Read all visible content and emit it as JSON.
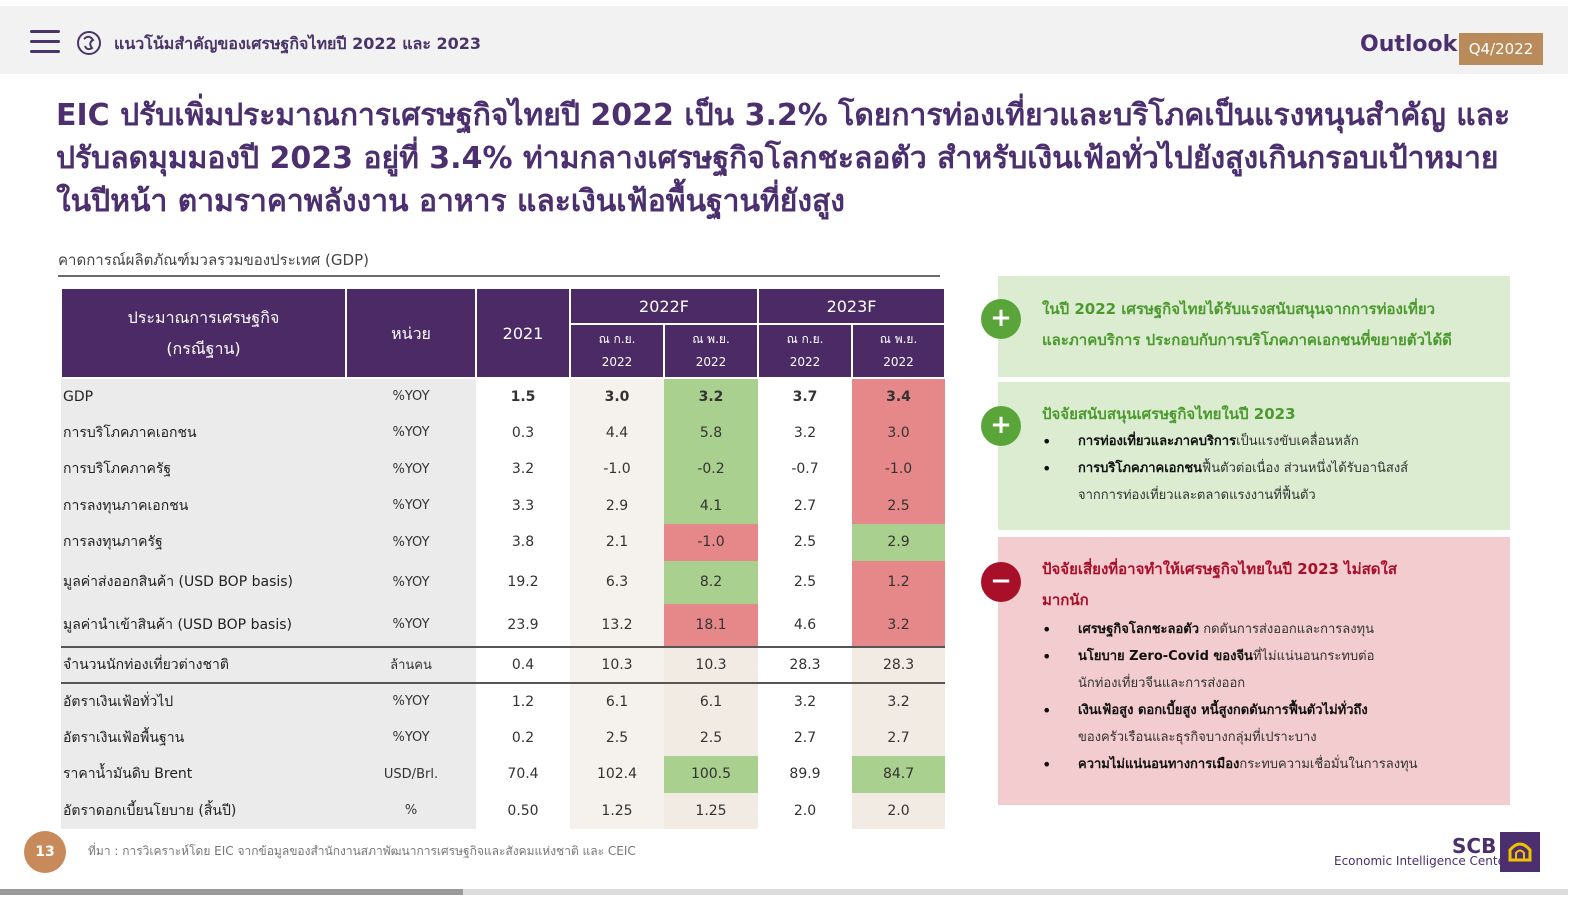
{
  "header": {
    "title": "แนวโน้มสำคัญของเศรษฐกิจไทยปี 2022 และ 2023",
    "outlook": "Outlook",
    "quarter": "Q4/2022",
    "menu_icon": "hamburger-menu-icon",
    "logo_icon": "eic-logo-icon"
  },
  "headline": {
    "line1": "EIC ปรับเพิ่มประมาณการเศรษฐกิจไทยปี 2022 เป็น 3.2% โดยการท่องเที่ยวและบริโภคเป็นแรงหนุนสำคัญ และ",
    "line2": "ปรับลดมุมมองปี 2023 อยู่ที่ 3.4% ท่ามกลางเศรษฐกิจโลกชะลอตัว สำหรับเงินเฟ้อทั่วไปยังสูงเกินกรอบเป้าหมาย",
    "line3": "ในปีหน้า ตามราคาพลังงาน อาหาร และเงินเฟ้อพื้นฐานที่ยังสูง"
  },
  "table": {
    "subtitle": "คาดการณ์ผลิตภัณฑ์มวลรวมของประเทศ (GDP)",
    "header": {
      "col_label_line1": "ประมาณการเศรษฐกิจ",
      "col_label_line2": "(กรณีฐาน)",
      "col_unit": "หน่วย",
      "col_2021": "2021",
      "group_2022": "2022F",
      "group_2023": "2023F",
      "sep_line1": "ณ ก.ย.",
      "sep_line2": "2022",
      "nov_line1": "ณ พ.ย.",
      "nov_line2": "2022"
    },
    "rows": [
      {
        "label": "GDP",
        "unit": "%YOY",
        "y2021": "1.5",
        "f22_sep": "3.0",
        "f22_nov": "3.2",
        "f23_sep": "3.7",
        "f23_nov": "3.4",
        "hl22": "green",
        "hl23": "red"
      },
      {
        "label": "การบริโภคภาคเอกชน",
        "unit": "%YOY",
        "y2021": "0.3",
        "f22_sep": "4.4",
        "f22_nov": "5.8",
        "f23_sep": "3.2",
        "f23_nov": "3.0",
        "hl22": "green",
        "hl23": "red"
      },
      {
        "label": "การบริโภคภาครัฐ",
        "unit": "%YOY",
        "y2021": "3.2",
        "f22_sep": "-1.0",
        "f22_nov": "-0.2",
        "f23_sep": "-0.7",
        "f23_nov": "-1.0",
        "hl22": "green",
        "hl23": "red"
      },
      {
        "label": "การลงทุนภาคเอกชน",
        "unit": "%YOY",
        "y2021": "3.3",
        "f22_sep": "2.9",
        "f22_nov": "4.1",
        "f23_sep": "2.7",
        "f23_nov": "2.5",
        "hl22": "green",
        "hl23": "red"
      },
      {
        "label": "การลงทุนภาครัฐ",
        "unit": "%YOY",
        "y2021": "3.8",
        "f22_sep": "2.1",
        "f22_nov": "-1.0",
        "f23_sep": "2.5",
        "f23_nov": "2.9",
        "hl22": "red",
        "hl23": "green"
      },
      {
        "label": "มูลค่าส่งออกสินค้า  (USD BOP basis)",
        "unit": "%YOY",
        "y2021": "19.2",
        "f22_sep": "6.3",
        "f22_nov": "8.2",
        "f23_sep": "2.5",
        "f23_nov": "1.2",
        "hl22": "green",
        "hl23": "red"
      },
      {
        "label": "มูลค่านำเข้าสินค้า  (USD BOP basis)",
        "unit": "%YOY",
        "y2021": "23.9",
        "f22_sep": "13.2",
        "f22_nov": "18.1",
        "f23_sep": "4.6",
        "f23_nov": "3.2",
        "hl22": "red",
        "hl23": "red"
      },
      {
        "label": "จำนวนนักท่องเที่ยวต่างชาติ",
        "unit": "ล้านคน",
        "y2021": "0.4",
        "f22_sep": "10.3",
        "f22_nov": "10.3",
        "f23_sep": "28.3",
        "f23_nov": "28.3",
        "hl22": "",
        "hl23": ""
      },
      {
        "label": "อัตราเงินเฟ้อทั่วไป",
        "unit": "%YOY",
        "y2021": "1.2",
        "f22_sep": "6.1",
        "f22_nov": "6.1",
        "f23_sep": "3.2",
        "f23_nov": "3.2",
        "hl22": "",
        "hl23": ""
      },
      {
        "label": "อัตราเงินเฟ้อพื้นฐาน",
        "unit": "%YOY",
        "y2021": "0.2",
        "f22_sep": "2.5",
        "f22_nov": "2.5",
        "f23_sep": "2.7",
        "f23_nov": "2.7",
        "hl22": "",
        "hl23": ""
      },
      {
        "label": "ราคาน้ำมันดิบ Brent",
        "unit": "USD/Brl.",
        "y2021": "70.4",
        "f22_sep": "102.4",
        "f22_nov": "100.5",
        "f23_sep": "89.9",
        "f23_nov": "84.7",
        "hl22": "green",
        "hl23": "green"
      },
      {
        "label": "อัตราดอกเบี้ยนโยบาย (สิ้นปี)",
        "unit": "%",
        "y2021": "0.50",
        "f22_sep": "1.25",
        "f22_nov": "1.25",
        "f23_sep": "2.0",
        "f23_nov": "2.0",
        "hl22": "",
        "hl23": ""
      }
    ]
  },
  "panels": {
    "p1": {
      "icon": "plus-icon",
      "line1": "ในปี 2022 เศรษฐกิจไทยได้รับแรงสนับสนุนจากการท่องเที่ยว",
      "line2": "และภาคบริการ ประกอบกับการบริโภคภาคเอกชนที่ขยายตัวได้ดี"
    },
    "p2": {
      "icon": "plus-icon",
      "title": "ปัจจัยสนับสนุนเศรษฐกิจไทยในปี 2023",
      "b1_bold": "การท่องเที่ยวและภาคบริการ",
      "b1_rest": "เป็นแรงขับเคลื่อนหลัก",
      "b2_bold": "การบริโภคภาคเอกชน",
      "b2_rest": "ฟื้นตัวต่อเนื่อง ส่วนหนึ่งได้รับอานิสงส์",
      "b2_line2": "จากการท่องเที่ยวและตลาดแรงงานที่ฟื้นตัว"
    },
    "p3": {
      "icon": "minus-icon",
      "title_line1": "ปัจจัยเสี่ยงที่อาจทำให้เศรษฐกิจไทยในปี 2023 ไม่สดใส",
      "title_line2": "มากนัก",
      "b1_bold": "เศรษฐกิจโลกชะลอตัว",
      "b1_rest": " กดดันการส่งออกและการลงทุน",
      "b2_bold": "นโยบาย Zero-Covid ของจีน",
      "b2_rest": "ที่ไม่แน่นอนกระทบต่อ",
      "b2_line2": "นักท่องเที่ยวจีนและการส่งออก",
      "b3_bold": "เงินเฟ้อสูง ดอกเบี้ยสูง หนี้สูงกดดันการฟื้นตัวไม่ทั่วถึง",
      "b3_line2": "ของครัวเรือนและธุรกิจบางกลุ่มที่เปราะบาง",
      "b4_bold": "ความไม่แน่นอนทางการเมือง",
      "b4_rest": "กระทบความเชื่อมั่นในการลงทุน"
    }
  },
  "footer": {
    "page_number": "13",
    "source": "ที่มา : การวิเคราะห์โดย EIC จากข้อมูลของสำนักงานสภาพัฒนาการเศรษฐกิจและสังคมแห่งชาติ และ CEIC",
    "brand": "SCB",
    "brand_sub": "Economic Intelligence Center",
    "brand_icon": "scb-logo-icon"
  },
  "progress": {
    "fraction": 0.295
  },
  "colors": {
    "purple": "#4b2a66",
    "green_highlight": "#a9d08e",
    "red_highlight": "#e6878a",
    "accent_orange": "#b98b5a"
  }
}
